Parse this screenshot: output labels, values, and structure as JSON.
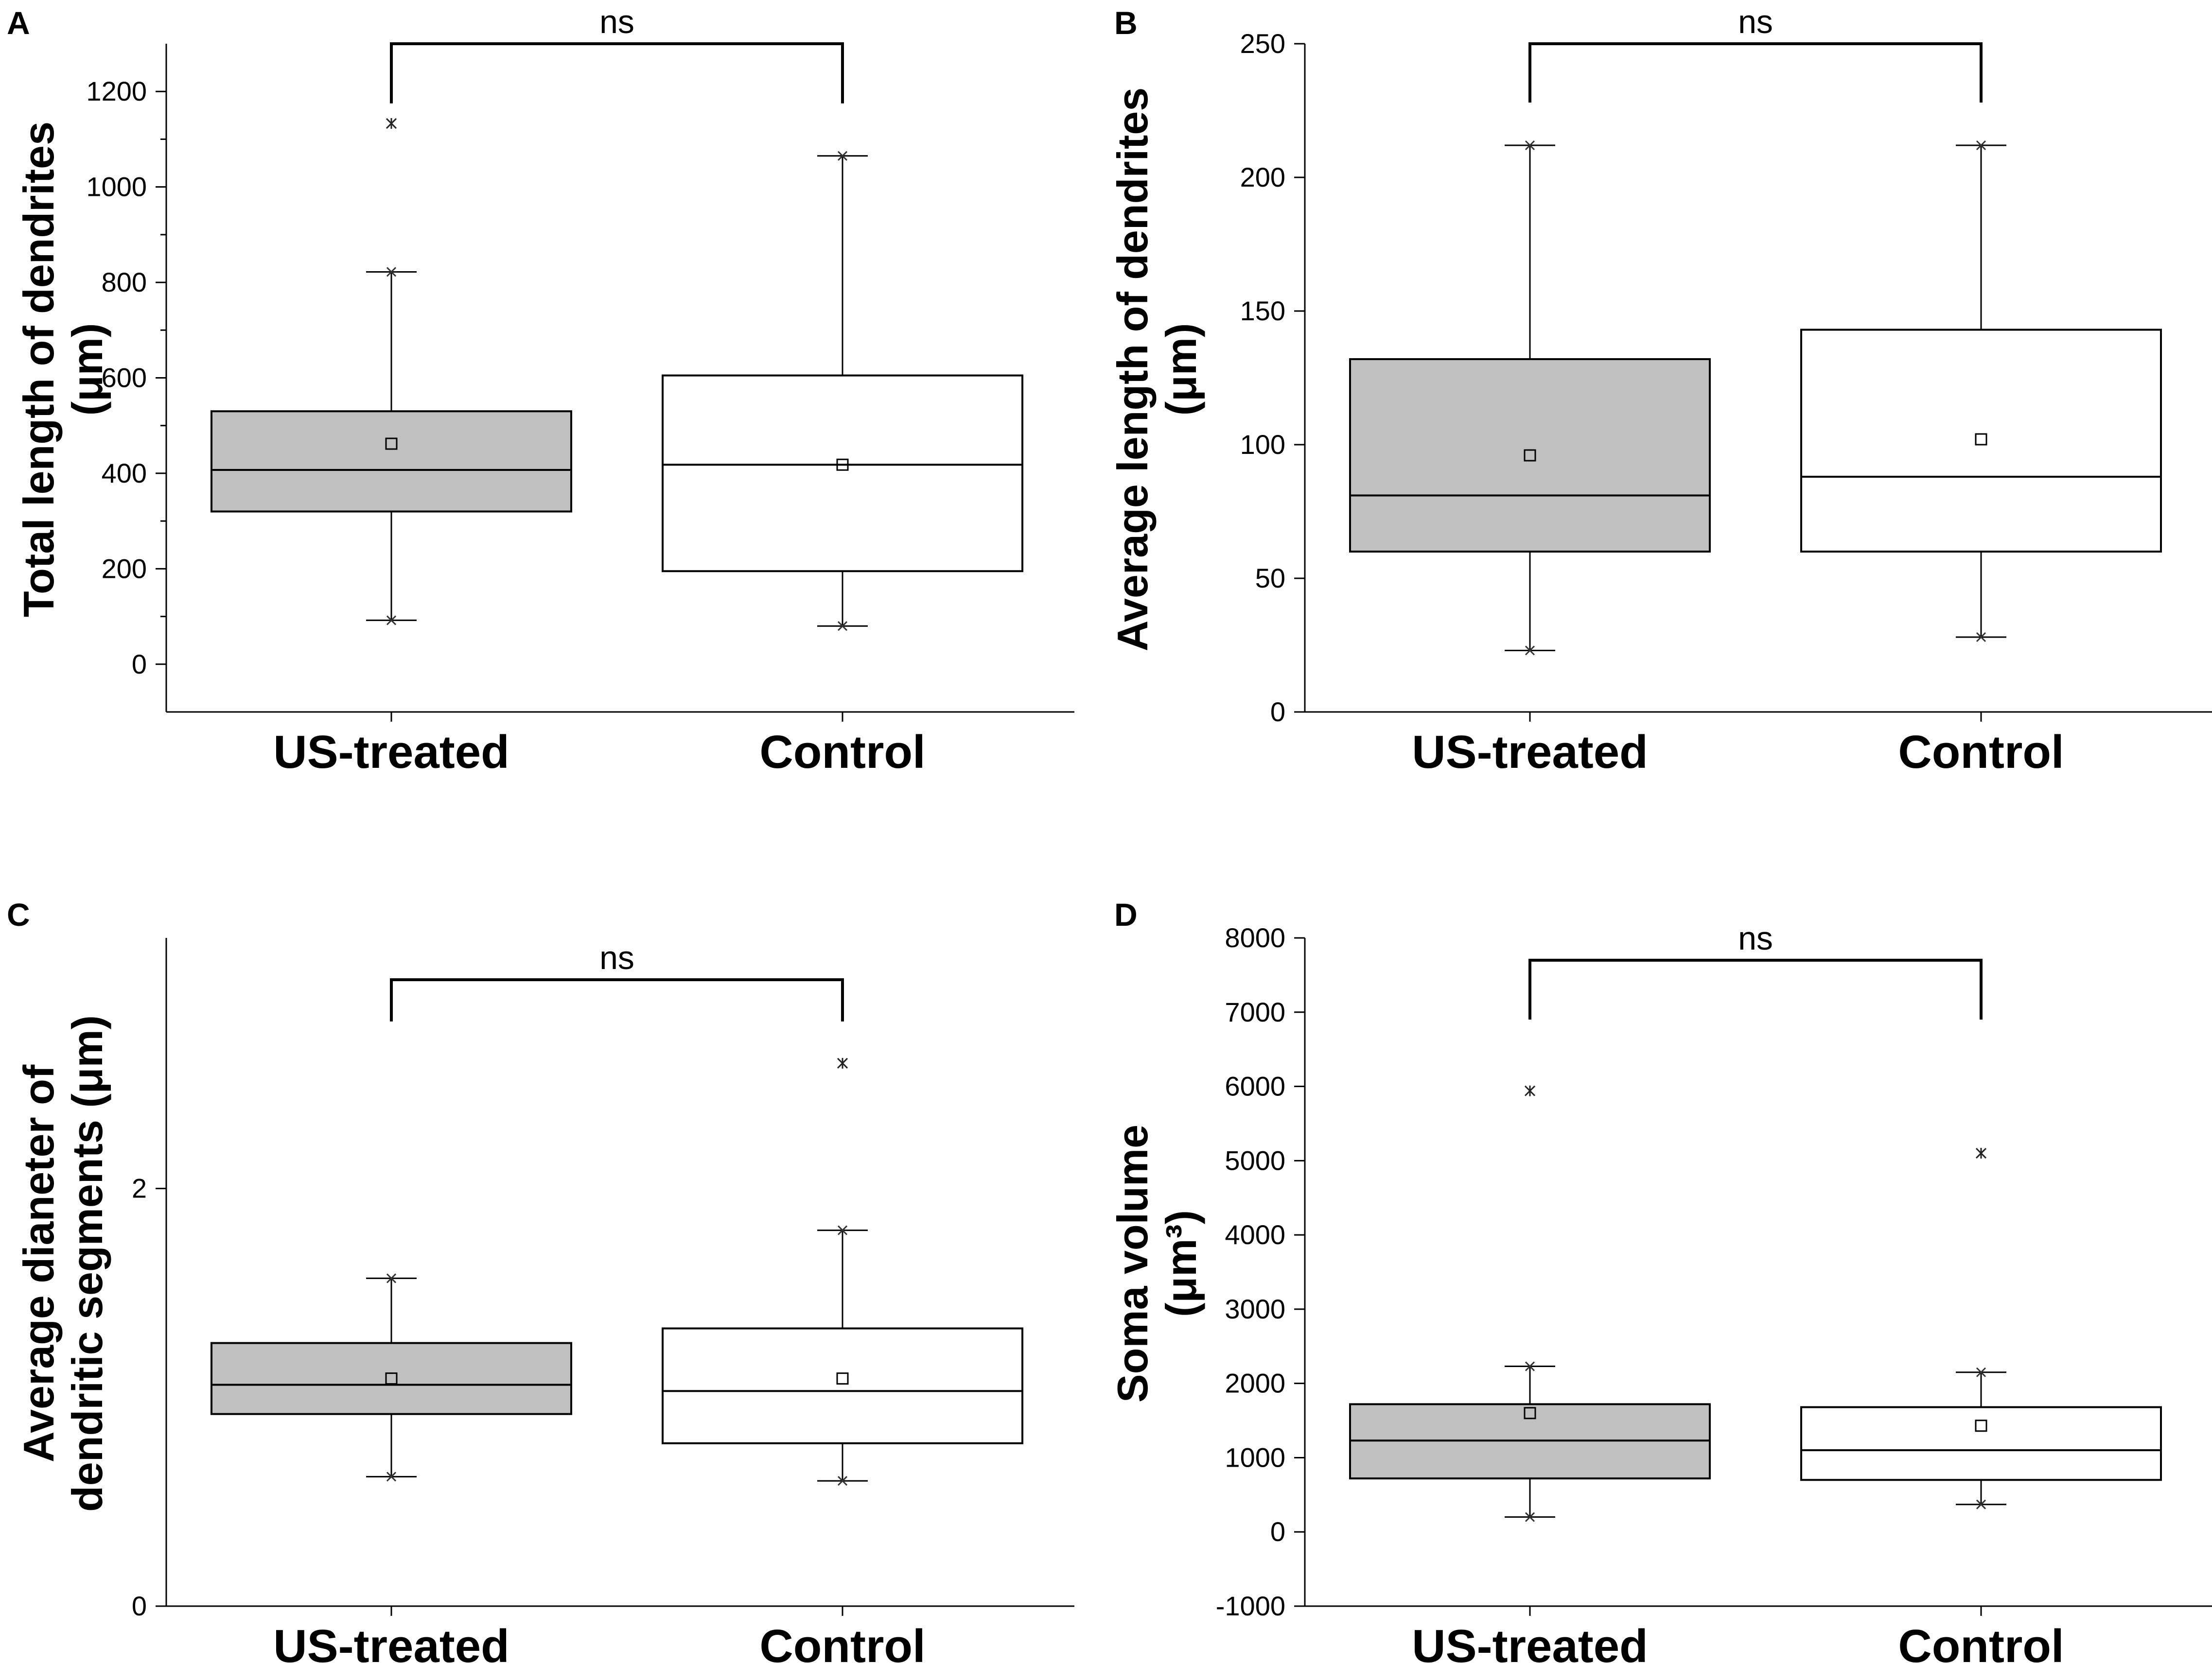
{
  "chart_data": [
    {
      "panel": "A",
      "type": "box",
      "title": "",
      "ylabel_lines": [
        "Total length of dendrites",
        "(μm)"
      ],
      "categories": [
        "US-treated",
        "Control"
      ],
      "ylim": [
        -100,
        1300
      ],
      "yticks": [
        0,
        200,
        400,
        600,
        800,
        1000,
        1200
      ],
      "yticks_minor": true,
      "boxes": [
        {
          "name": "US-treated",
          "fill": "#c0c0c0",
          "q1": 320,
          "median": 407,
          "q3": 530,
          "whisker_low": 92,
          "whisker_high": 822,
          "mean": 462,
          "outliers": [
            1133
          ]
        },
        {
          "name": "Control",
          "fill": "#ffffff",
          "q1": 195,
          "median": 418,
          "q3": 605,
          "whisker_low": 80,
          "whisker_high": 1065,
          "mean": 418,
          "outliers": []
        }
      ],
      "significance": {
        "label": "ns",
        "bar_y": 1300,
        "leg_bottom_y": 1175
      }
    },
    {
      "panel": "B",
      "type": "box",
      "title": "",
      "ylabel_lines": [
        "Average length of dendrites",
        "(μm)"
      ],
      "categories": [
        "US-treated",
        "Control"
      ],
      "ylim": [
        0,
        250
      ],
      "yticks": [
        0,
        50,
        100,
        150,
        200,
        250
      ],
      "yticks_minor": false,
      "boxes": [
        {
          "name": "US-treated",
          "fill": "#c0c0c0",
          "q1": 60,
          "median": 81,
          "q3": 132,
          "whisker_low": 23,
          "whisker_high": 212,
          "mean": 96,
          "outliers": []
        },
        {
          "name": "Control",
          "fill": "#ffffff",
          "q1": 60,
          "median": 88,
          "q3": 143,
          "whisker_low": 28,
          "whisker_high": 212,
          "mean": 102,
          "outliers": []
        }
      ],
      "significance": {
        "label": "ns",
        "bar_y": 250,
        "leg_bottom_y": 228
      }
    },
    {
      "panel": "C",
      "type": "box",
      "title": "",
      "ylabel_lines": [
        "Average dianeter of",
        "dendritic segments (μm)"
      ],
      "categories": [
        "US-treated",
        "Control"
      ],
      "ylim": [
        0,
        3.2
      ],
      "yticks": [
        0,
        2
      ],
      "yticks_minor": false,
      "boxes": [
        {
          "name": "US-treated",
          "fill": "#c0c0c0",
          "q1": 0.92,
          "median": 1.06,
          "q3": 1.26,
          "whisker_low": 0.62,
          "whisker_high": 1.57,
          "mean": 1.09,
          "outliers": []
        },
        {
          "name": "Control",
          "fill": "#ffffff",
          "q1": 0.78,
          "median": 1.03,
          "q3": 1.33,
          "whisker_low": 0.6,
          "whisker_high": 1.8,
          "mean": 1.09,
          "outliers": [
            2.6
          ]
        }
      ],
      "significance": {
        "label": "ns",
        "bar_y": 3.0,
        "leg_bottom_y": 2.8
      }
    },
    {
      "panel": "D",
      "type": "box",
      "title": "",
      "ylabel_lines": [
        "Soma volume",
        "(μm³)"
      ],
      "categories": [
        "US-treated",
        "Control"
      ],
      "ylim": [
        -1000,
        8000
      ],
      "yticks": [
        -1000,
        0,
        1000,
        2000,
        3000,
        4000,
        5000,
        6000,
        7000,
        8000
      ],
      "yticks_minor": false,
      "boxes": [
        {
          "name": "US-treated",
          "fill": "#c0c0c0",
          "q1": 720,
          "median": 1230,
          "q3": 1720,
          "whisker_low": 200,
          "whisker_high": 2230,
          "mean": 1600,
          "outliers": [
            5940
          ]
        },
        {
          "name": "Control",
          "fill": "#ffffff",
          "q1": 700,
          "median": 1100,
          "q3": 1680,
          "whisker_low": 370,
          "whisker_high": 2150,
          "mean": 1430,
          "outliers": [
            5100
          ]
        }
      ],
      "significance": {
        "label": "ns",
        "bar_y": 7700,
        "leg_bottom_y": 6900
      }
    }
  ]
}
